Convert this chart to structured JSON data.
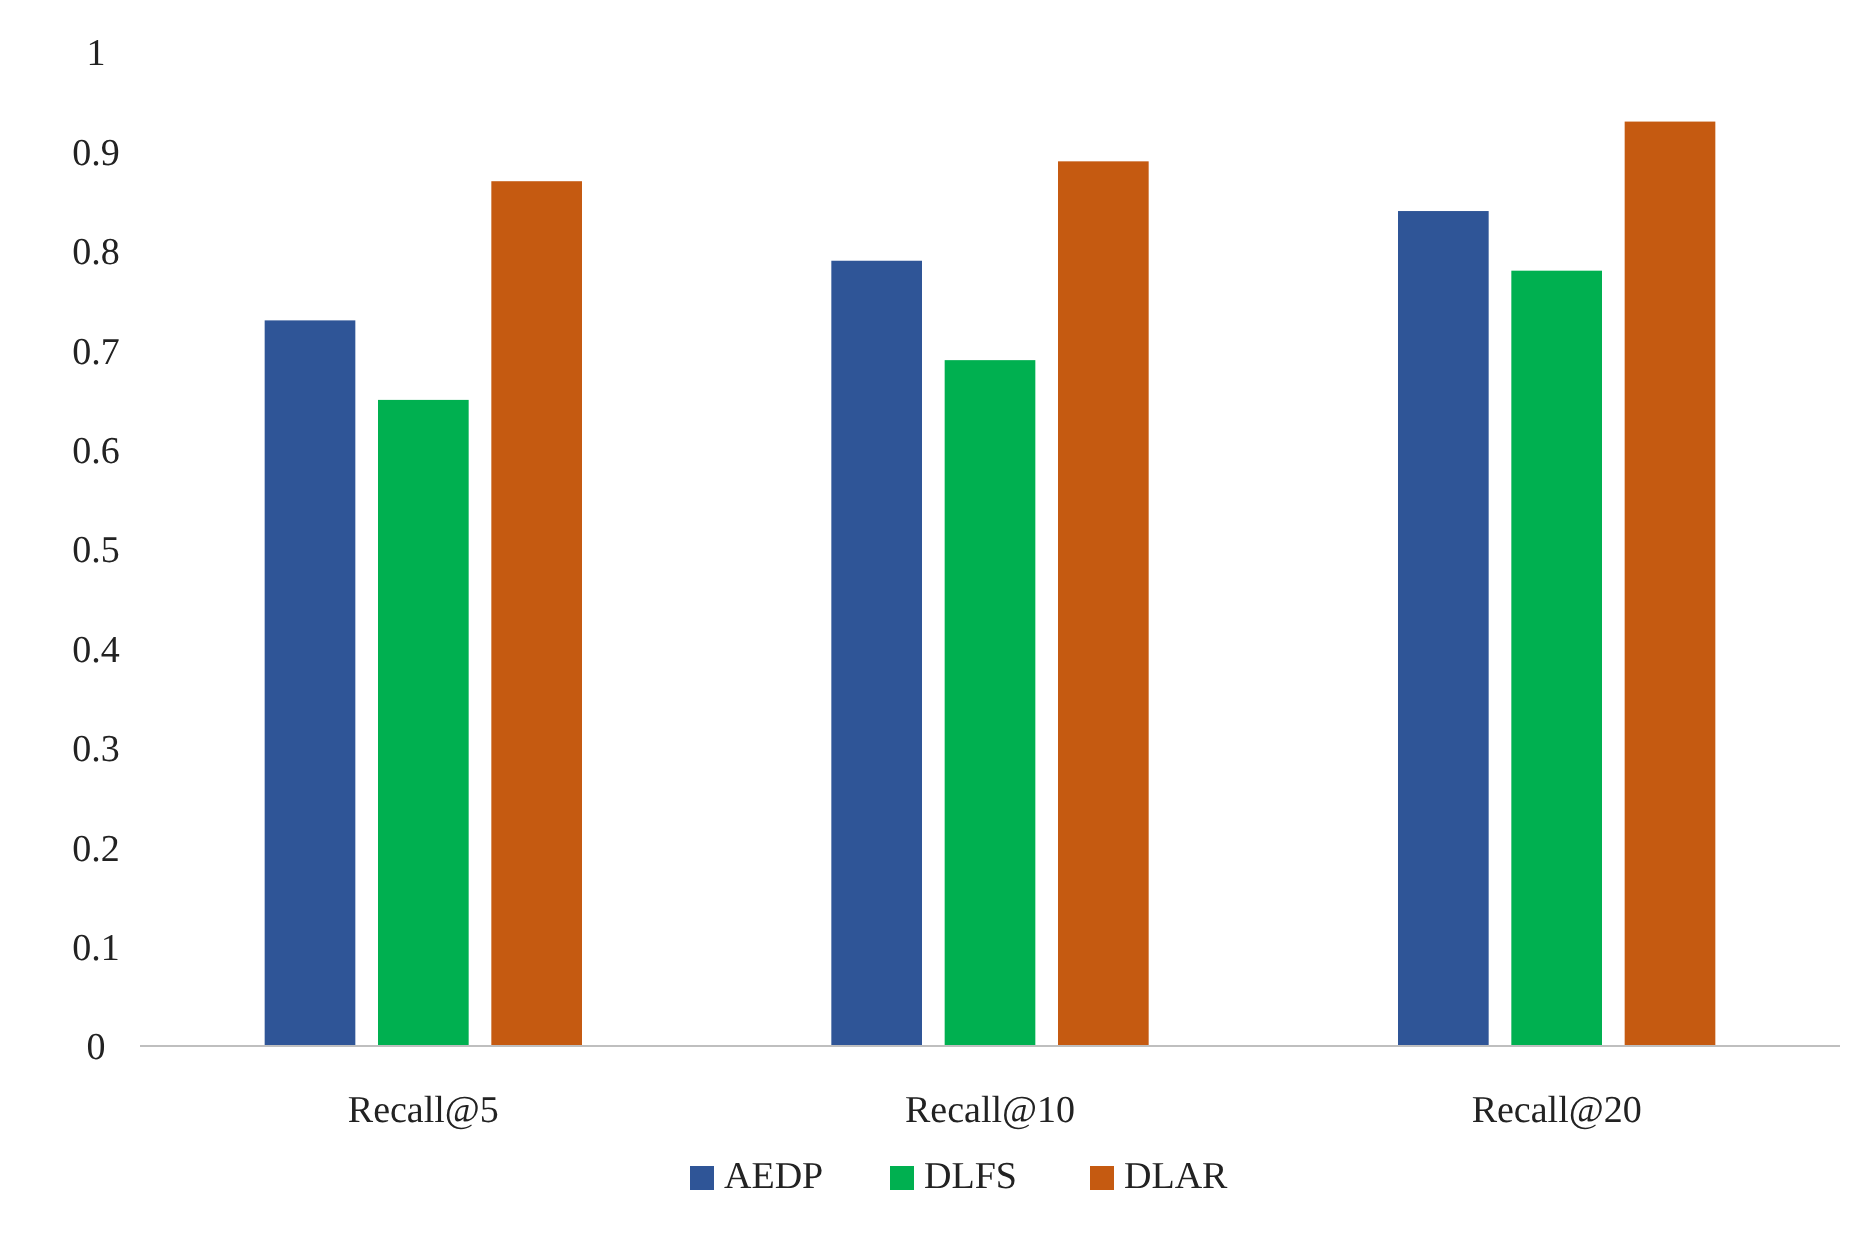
{
  "chart_data": {
    "type": "bar",
    "categories": [
      "Recall@5",
      "Recall@10",
      "Recall@20"
    ],
    "series": [
      {
        "name": "AEDP",
        "color": "#2f5597",
        "values": [
          0.73,
          0.79,
          0.84
        ]
      },
      {
        "name": "DLFS",
        "color": "#00b050",
        "values": [
          0.65,
          0.69,
          0.78
        ]
      },
      {
        "name": "DLAR",
        "color": "#c55a11",
        "values": [
          0.87,
          0.89,
          0.93
        ]
      }
    ],
    "ylim": [
      0,
      1
    ],
    "yticks": [
      0,
      {
        "value": 0.1,
        "label": "0.1"
      },
      {
        "value": 0.2,
        "label": "0.2"
      },
      {
        "value": 0.3,
        "label": "0.3"
      },
      {
        "value": 0.4,
        "label": "0.4"
      },
      {
        "value": 0.5,
        "label": "0.5"
      },
      {
        "value": 0.6,
        "label": "0.6"
      },
      {
        "value": 0.7,
        "label": "0.7"
      },
      {
        "value": 0.8,
        "label": "0.8"
      },
      {
        "value": 0.9,
        "label": "0.9"
      },
      1
    ],
    "grid": false,
    "legend": "bottom"
  }
}
